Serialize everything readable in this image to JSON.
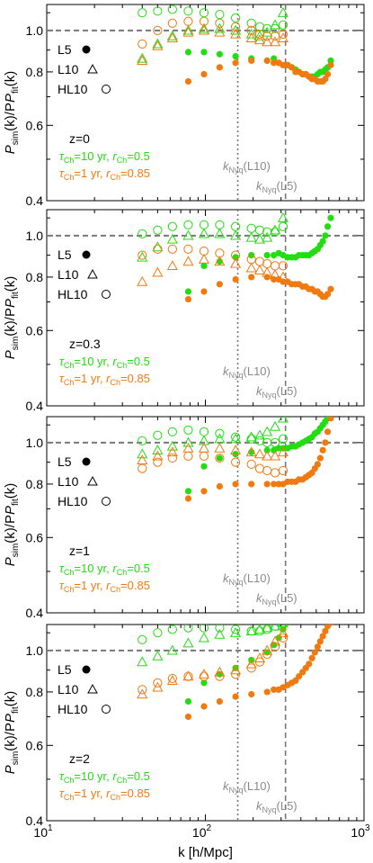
{
  "colors": {
    "green": "#22dd11",
    "orange": "#f07a10",
    "guide": "#777777",
    "nyq_label": "#8a8a8a",
    "axis": "#000000"
  },
  "shared": {
    "xlabel": "k [h/Mpc]",
    "ylabel_main": "P",
    "ylabel_sub1": "sim",
    "ylabel_mid": "(k)/P",
    "ylabel_sub2": "fit",
    "ylabel_end": "(k)",
    "x_tick_base": "10",
    "x_tick_exponents": [
      "1",
      "2",
      "3"
    ],
    "y_tick_labels": [
      "0.4",
      "0.6",
      "0.8",
      "1.0"
    ],
    "legend": [
      {
        "label": "L5",
        "marker": "filled-circle"
      },
      {
        "label": "L10",
        "marker": "triangle"
      },
      {
        "label": "HL10",
        "marker": "open-circle"
      }
    ],
    "green_params": {
      "tau": "τ",
      "tau_sub": "Ch",
      "tau_val": "=10 yr, ",
      "r": "r",
      "r_sub": "Ch",
      "r_val": "=0.5"
    },
    "orange_params": {
      "tau": "τ",
      "tau_sub": "Ch",
      "tau_val": "=1 yr, ",
      "r": "r",
      "r_sub": "Ch",
      "r_val": "=0.85"
    },
    "nyq_l10": {
      "k": "k",
      "sub": "Nyq",
      "paren": "(L10)"
    },
    "nyq_l5": {
      "k": "k",
      "sub": "Nyq",
      "paren": "(L5)"
    }
  },
  "chart_data": [
    {
      "type": "scatter",
      "redshift_label": "z=0",
      "xscale": "log",
      "yscale": "log",
      "xlim": [
        10,
        1000
      ],
      "ylim": [
        0.4,
        1.15
      ],
      "hlines": [
        1.0
      ],
      "vlines_nyquist": {
        "L10": 160,
        "L5": 320
      },
      "k_values": [
        40,
        50,
        62,
        78,
        98,
        123,
        155,
        195,
        245,
        309,
        389,
        490,
        617
      ],
      "series": [
        {
          "name": "L5",
          "model": "green",
          "marker": "filled-circle",
          "k": [
            78,
            98,
            123,
            155,
            195,
            245,
            270,
            290,
            309,
            330,
            350,
            370,
            389,
            410,
            430,
            450,
            470,
            490,
            510,
            530,
            550,
            570,
            590,
            617
          ],
          "values": [
            0.89,
            0.89,
            0.88,
            0.87,
            0.86,
            0.85,
            0.86,
            0.84,
            0.83,
            0.83,
            0.82,
            0.81,
            0.8,
            0.79,
            0.79,
            0.78,
            0.78,
            0.78,
            0.79,
            0.8,
            0.8,
            0.81,
            0.82,
            0.85
          ]
        },
        {
          "name": "L5",
          "model": "orange",
          "marker": "filled-circle",
          "k": [
            78,
            98,
            123,
            155,
            195,
            245,
            270,
            290,
            309,
            330,
            350,
            370,
            389,
            410,
            430,
            450,
            470,
            490,
            510,
            530,
            550,
            570,
            590,
            617
          ],
          "values": [
            0.76,
            0.79,
            0.82,
            0.84,
            0.85,
            0.85,
            0.84,
            0.84,
            0.83,
            0.83,
            0.82,
            0.8,
            0.8,
            0.79,
            0.79,
            0.78,
            0.77,
            0.77,
            0.76,
            0.76,
            0.76,
            0.77,
            0.79,
            0.83
          ]
        },
        {
          "name": "L10",
          "model": "green",
          "marker": "triangle",
          "k": [
            40,
            50,
            62,
            78,
            98,
            123,
            155,
            195,
            220,
            245,
            275,
            309
          ],
          "values": [
            0.86,
            0.93,
            0.97,
            1.0,
            1.01,
            1.01,
            1.0,
            0.98,
            0.97,
            0.99,
            1.03,
            1.1
          ]
        },
        {
          "name": "L10",
          "model": "orange",
          "marker": "triangle",
          "k": [
            40,
            50,
            62,
            78,
            98,
            123,
            155,
            195,
            220,
            245,
            275,
            309
          ],
          "values": [
            0.85,
            0.92,
            0.96,
            0.99,
            1.0,
            0.99,
            0.98,
            0.96,
            0.95,
            0.94,
            0.94,
            0.96
          ]
        },
        {
          "name": "HL10",
          "model": "green",
          "marker": "open-circle",
          "k": [
            40,
            50,
            62,
            78,
            98,
            123,
            155,
            195,
            220,
            245,
            275,
            309
          ],
          "values": [
            1.1,
            1.11,
            1.12,
            1.11,
            1.1,
            1.09,
            1.07,
            1.04,
            1.02,
            1.01,
            1.01,
            1.03
          ]
        },
        {
          "name": "HL10",
          "model": "orange",
          "marker": "open-circle",
          "k": [
            40,
            50,
            62,
            78,
            98,
            123,
            155,
            195,
            220,
            245,
            275,
            309
          ],
          "values": [
            0.93,
            1.0,
            1.04,
            1.05,
            1.05,
            1.04,
            1.02,
            1.0,
            0.98,
            0.97,
            0.97,
            0.98
          ]
        }
      ]
    },
    {
      "type": "scatter",
      "redshift_label": "z=0.3",
      "xscale": "log",
      "yscale": "log",
      "xlim": [
        10,
        1000
      ],
      "ylim": [
        0.4,
        1.15
      ],
      "hlines": [
        1.0
      ],
      "vlines_nyquist": {
        "L10": 160,
        "L5": 320
      },
      "series": [
        {
          "name": "L5",
          "model": "green",
          "marker": "filled-circle",
          "k": [
            78,
            98,
            123,
            155,
            195,
            245,
            270,
            290,
            309,
            330,
            350,
            370,
            389,
            410,
            430,
            450,
            470,
            490,
            510,
            530,
            550,
            570,
            590,
            617
          ],
          "values": [
            0.74,
            0.85,
            0.87,
            0.89,
            0.9,
            0.9,
            0.9,
            0.91,
            0.9,
            0.89,
            0.89,
            0.89,
            0.9,
            0.9,
            0.9,
            0.9,
            0.91,
            0.92,
            0.93,
            0.95,
            0.97,
            1.0,
            1.05,
            1.1
          ]
        },
        {
          "name": "L5",
          "model": "orange",
          "marker": "filled-circle",
          "k": [
            78,
            98,
            123,
            155,
            195,
            245,
            270,
            290,
            309,
            330,
            350,
            370,
            389,
            410,
            430,
            450,
            470,
            490,
            510,
            530,
            550,
            570,
            590,
            617
          ],
          "values": [
            0.71,
            0.74,
            0.77,
            0.79,
            0.8,
            0.8,
            0.79,
            0.79,
            0.78,
            0.78,
            0.77,
            0.77,
            0.77,
            0.76,
            0.76,
            0.75,
            0.75,
            0.74,
            0.74,
            0.73,
            0.72,
            0.72,
            0.73,
            0.75
          ]
        },
        {
          "name": "L10",
          "model": "green",
          "marker": "triangle",
          "k": [
            40,
            50,
            62,
            78,
            98,
            123,
            155,
            195,
            220,
            245,
            275,
            309
          ],
          "values": [
            0.89,
            0.94,
            0.98,
            1.0,
            1.01,
            1.01,
            1.0,
            0.99,
            0.98,
            0.99,
            1.03,
            1.1
          ]
        },
        {
          "name": "L10",
          "model": "orange",
          "marker": "triangle",
          "k": [
            40,
            50,
            62,
            78,
            98,
            123,
            155,
            195,
            220,
            245,
            275,
            309
          ],
          "values": [
            0.78,
            0.82,
            0.85,
            0.87,
            0.88,
            0.87,
            0.86,
            0.84,
            0.83,
            0.82,
            0.81,
            0.8
          ]
        },
        {
          "name": "HL10",
          "model": "green",
          "marker": "open-circle",
          "k": [
            40,
            50,
            62,
            78,
            98,
            123,
            155,
            195,
            220,
            245,
            275,
            309
          ],
          "values": [
            1.01,
            1.03,
            1.05,
            1.06,
            1.06,
            1.06,
            1.05,
            1.04,
            1.03,
            1.02,
            1.02,
            1.05
          ]
        },
        {
          "name": "HL10",
          "model": "orange",
          "marker": "open-circle",
          "k": [
            40,
            50,
            62,
            78,
            98,
            123,
            155,
            195,
            220,
            245,
            275,
            309
          ],
          "values": [
            0.9,
            0.93,
            0.93,
            0.93,
            0.92,
            0.91,
            0.9,
            0.88,
            0.87,
            0.86,
            0.85,
            0.85
          ]
        }
      ]
    },
    {
      "type": "scatter",
      "redshift_label": "z=1",
      "xscale": "log",
      "yscale": "log",
      "xlim": [
        10,
        1000
      ],
      "ylim": [
        0.4,
        1.15
      ],
      "hlines": [
        1.0
      ],
      "vlines_nyquist": {
        "L10": 160,
        "L5": 320
      },
      "series": [
        {
          "name": "L5",
          "model": "green",
          "marker": "filled-circle",
          "k": [
            78,
            98,
            123,
            155,
            195,
            245,
            270,
            290,
            309,
            330,
            350,
            370,
            389,
            410,
            430,
            450,
            470,
            490,
            510,
            530,
            550,
            570,
            590,
            617
          ],
          "values": [
            0.77,
            0.88,
            0.92,
            0.94,
            0.95,
            0.96,
            0.96,
            0.97,
            0.97,
            0.97,
            0.98,
            0.98,
            0.99,
            1.0,
            1.01,
            1.02,
            1.03,
            1.05,
            1.06,
            1.08,
            1.1,
            1.12,
            1.14,
            1.16
          ]
        },
        {
          "name": "L5",
          "model": "orange",
          "marker": "filled-circle",
          "k": [
            78,
            98,
            123,
            155,
            195,
            245,
            270,
            290,
            309,
            330,
            350,
            370,
            389,
            410,
            430,
            450,
            470,
            490,
            510,
            530,
            550,
            570,
            590,
            617
          ],
          "values": [
            0.74,
            0.77,
            0.79,
            0.8,
            0.8,
            0.8,
            0.8,
            0.8,
            0.8,
            0.81,
            0.81,
            0.81,
            0.82,
            0.82,
            0.83,
            0.84,
            0.85,
            0.87,
            0.89,
            0.92,
            0.96,
            1.0,
            1.06,
            1.14
          ]
        },
        {
          "name": "L10",
          "model": "green",
          "marker": "triangle",
          "k": [
            40,
            50,
            62,
            78,
            98,
            123,
            155,
            195,
            220,
            245,
            275,
            309
          ],
          "values": [
            0.94,
            0.96,
            0.98,
            1.0,
            1.01,
            1.02,
            1.02,
            1.03,
            1.04,
            1.06,
            1.09,
            1.14
          ]
        },
        {
          "name": "L10",
          "model": "orange",
          "marker": "triangle",
          "k": [
            40,
            50,
            62,
            78,
            98,
            123,
            155,
            195,
            220,
            245,
            275,
            309
          ],
          "values": [
            0.91,
            0.93,
            0.95,
            0.97,
            0.97,
            0.97,
            0.96,
            0.95,
            0.94,
            0.93,
            0.93,
            0.95
          ]
        },
        {
          "name": "HL10",
          "model": "green",
          "marker": "open-circle",
          "k": [
            40,
            50,
            62,
            78,
            98,
            123,
            155,
            195,
            220,
            245,
            275,
            309
          ],
          "values": [
            1.01,
            1.04,
            1.06,
            1.07,
            1.06,
            1.05,
            1.03,
            1.02,
            1.01,
            1.0,
            1.0,
            1.02
          ]
        },
        {
          "name": "HL10",
          "model": "orange",
          "marker": "open-circle",
          "k": [
            40,
            50,
            62,
            78,
            98,
            123,
            155,
            195,
            220,
            245,
            275,
            309
          ],
          "values": [
            0.87,
            0.9,
            0.92,
            0.93,
            0.93,
            0.92,
            0.9,
            0.89,
            0.87,
            0.86,
            0.85,
            0.86
          ]
        }
      ]
    },
    {
      "type": "scatter",
      "redshift_label": "z=2",
      "xscale": "log",
      "yscale": "log",
      "xlim": [
        10,
        1000
      ],
      "ylim": [
        0.4,
        1.15
      ],
      "hlines": [
        1.0
      ],
      "vlines_nyquist": {
        "L10": 160,
        "L5": 320
      },
      "series": [
        {
          "name": "L5",
          "model": "green",
          "marker": "filled-circle",
          "k": [
            78,
            98,
            123,
            155,
            195,
            245,
            270,
            290,
            309
          ],
          "values": [
            0.76,
            0.84,
            0.88,
            0.91,
            0.95,
            0.99,
            1.03,
            1.07,
            1.12
          ]
        },
        {
          "name": "L5",
          "model": "orange",
          "marker": "filled-circle",
          "k": [
            78,
            98,
            123,
            155,
            195,
            245,
            270,
            290,
            309,
            330,
            350,
            370,
            389,
            410,
            430,
            450,
            470,
            490,
            510,
            530,
            550,
            570,
            590,
            617
          ],
          "values": [
            0.7,
            0.74,
            0.76,
            0.78,
            0.79,
            0.8,
            0.81,
            0.81,
            0.82,
            0.83,
            0.84,
            0.85,
            0.87,
            0.89,
            0.91,
            0.93,
            0.96,
            0.99,
            1.02,
            1.05,
            1.08,
            1.11,
            1.14,
            1.16
          ]
        },
        {
          "name": "L10",
          "model": "green",
          "marker": "triangle",
          "k": [
            40,
            50,
            62,
            78,
            98,
            123,
            155,
            195,
            220,
            245,
            275,
            309
          ],
          "values": [
            0.94,
            0.97,
            1.0,
            1.04,
            1.07,
            1.09,
            1.1,
            1.11,
            1.12,
            1.13,
            1.14,
            1.16
          ]
        },
        {
          "name": "L10",
          "model": "orange",
          "marker": "triangle",
          "k": [
            40,
            50,
            62,
            78,
            98,
            123,
            155,
            195,
            220,
            245,
            275,
            309
          ],
          "values": [
            0.79,
            0.82,
            0.85,
            0.87,
            0.88,
            0.89,
            0.9,
            0.93,
            0.96,
            1.0,
            1.05,
            1.1
          ]
        },
        {
          "name": "HL10",
          "model": "green",
          "marker": "open-circle",
          "k": [
            40,
            50,
            62,
            78,
            98,
            123,
            155,
            195,
            220,
            245,
            275,
            309
          ],
          "values": [
            1.06,
            1.1,
            1.12,
            1.13,
            1.13,
            1.13,
            1.12,
            1.11,
            1.11,
            1.12,
            1.14,
            1.16
          ]
        },
        {
          "name": "HL10",
          "model": "orange",
          "marker": "open-circle",
          "k": [
            40,
            50,
            62,
            78,
            98,
            123,
            155,
            195,
            220,
            245,
            275,
            309
          ],
          "values": [
            0.81,
            0.84,
            0.86,
            0.87,
            0.87,
            0.87,
            0.88,
            0.91,
            0.94,
            0.98,
            1.02,
            1.07
          ]
        }
      ]
    }
  ]
}
